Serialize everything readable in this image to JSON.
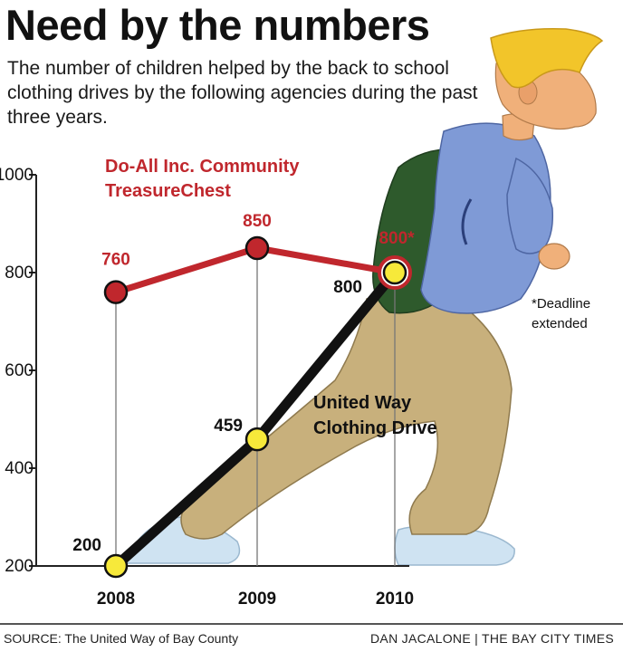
{
  "header": {
    "title": "Need by the numbers",
    "subtitle": "The number of children helped by the back to school clothing drives by the following agencies during the past three years."
  },
  "chart_data": {
    "type": "line",
    "categories": [
      "2008",
      "2009",
      "2010"
    ],
    "ylim": [
      200,
      1000
    ],
    "yticks": [
      "200",
      "400",
      "600",
      "800",
      "1000"
    ],
    "series": [
      {
        "name_lines": [
          "Do-All Inc. Community",
          "TreasureChest"
        ],
        "values": [
          760,
          850,
          800
        ],
        "labels": [
          "760",
          "850",
          "800*"
        ],
        "color": "#c0272d",
        "marker_color": "#c0272d"
      },
      {
        "name_lines": [
          "United Way",
          "Clothing Drive"
        ],
        "values": [
          200,
          459,
          800
        ],
        "labels": [
          "200",
          "459",
          "800"
        ],
        "color": "#111111",
        "marker_color": "#f7e93a"
      }
    ],
    "annotation_lines": [
      "*Deadline",
      "extended"
    ]
  },
  "footer": {
    "source": "SOURCE: The United Way of Bay County",
    "credit": "DAN JACALONE | THE BAY CITY TIMES"
  },
  "colors": {
    "hair": "#f2c52a",
    "skin": "#f0b07a",
    "sweater": "#7f9ad6",
    "pants": "#c8b07c",
    "backpack": "#2e5a2c",
    "shoes": "#cfe3f2"
  }
}
